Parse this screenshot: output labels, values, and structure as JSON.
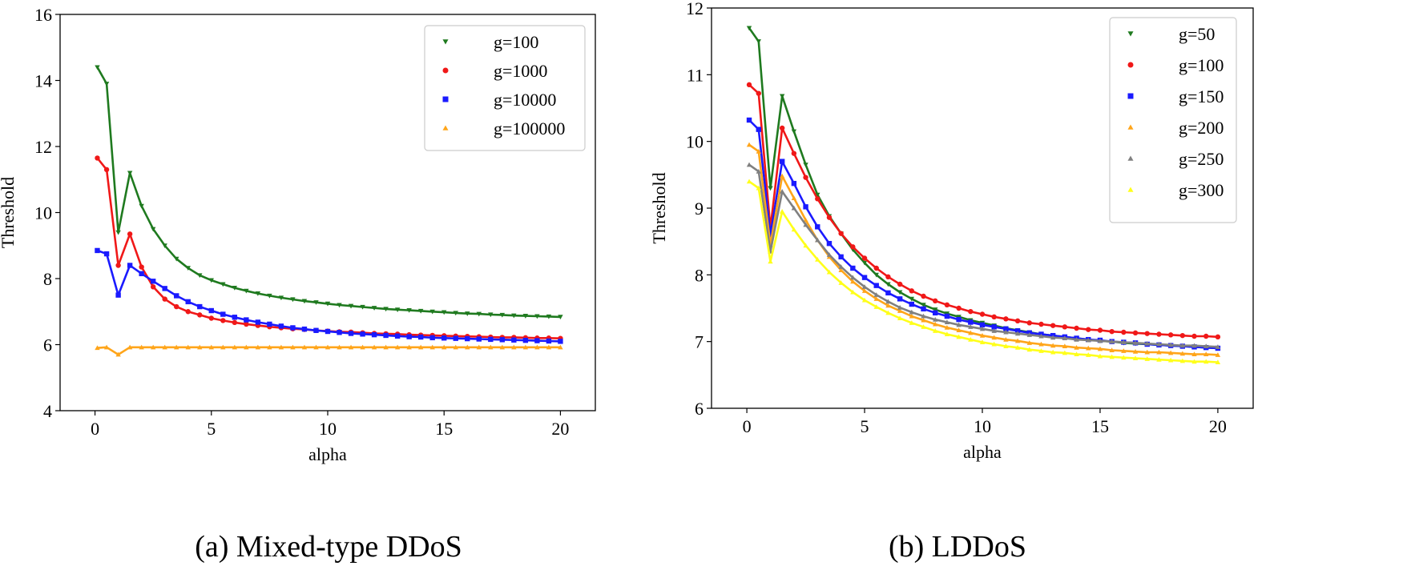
{
  "figure": {
    "caption_a": "(a) Mixed-type DDoS",
    "caption_b": "(b) LDDoS"
  },
  "chart_data": [
    {
      "type": "line",
      "id": "a",
      "title": "",
      "xlabel": "alpha",
      "ylabel": "Threshold",
      "xlim": [
        -1.5,
        21.5
      ],
      "ylim": [
        4,
        16
      ],
      "xticks": [
        0,
        5,
        10,
        15,
        20
      ],
      "yticks": [
        4,
        6,
        8,
        10,
        12,
        14,
        16
      ],
      "grid": false,
      "legend_position": "top-right",
      "series": [
        {
          "name": "g=100",
          "color": "#1f7a1f",
          "marker": "triangle-down",
          "x": [
            0.1,
            0.5,
            1.0,
            1.5,
            2.0,
            2.5,
            3.0,
            3.5,
            4.0,
            4.5,
            5.0,
            5.5,
            6.0,
            6.5,
            7.0,
            7.5,
            8.0,
            8.5,
            9.0,
            9.5,
            10.0,
            10.5,
            11.0,
            11.5,
            12.0,
            12.5,
            13.0,
            13.5,
            14.0,
            14.5,
            15.0,
            15.5,
            16.0,
            16.5,
            17.0,
            17.5,
            18.0,
            18.5,
            19.0,
            19.5,
            20.0
          ],
          "values": [
            14.4,
            13.9,
            9.4,
            11.2,
            10.2,
            9.5,
            9.0,
            8.6,
            8.32,
            8.1,
            7.95,
            7.83,
            7.72,
            7.63,
            7.55,
            7.48,
            7.42,
            7.37,
            7.32,
            7.28,
            7.24,
            7.2,
            7.17,
            7.14,
            7.11,
            7.08,
            7.06,
            7.04,
            7.02,
            7.0,
            6.98,
            6.96,
            6.94,
            6.93,
            6.91,
            6.9,
            6.88,
            6.87,
            6.86,
            6.85,
            6.84
          ]
        },
        {
          "name": "g=1000",
          "color": "#f01818",
          "marker": "circle",
          "x": [
            0.1,
            0.5,
            1.0,
            1.5,
            2.0,
            2.5,
            3.0,
            3.5,
            4.0,
            4.5,
            5.0,
            5.5,
            6.0,
            6.5,
            7.0,
            7.5,
            8.0,
            8.5,
            9.0,
            9.5,
            10.0,
            10.5,
            11.0,
            11.5,
            12.0,
            12.5,
            13.0,
            13.5,
            14.0,
            14.5,
            15.0,
            15.5,
            16.0,
            16.5,
            17.0,
            17.5,
            18.0,
            18.5,
            19.0,
            19.5,
            20.0
          ],
          "values": [
            11.65,
            11.3,
            8.4,
            9.35,
            8.35,
            7.75,
            7.38,
            7.15,
            7.0,
            6.9,
            6.8,
            6.73,
            6.67,
            6.62,
            6.58,
            6.54,
            6.51,
            6.48,
            6.46,
            6.43,
            6.41,
            6.39,
            6.38,
            6.36,
            6.34,
            6.33,
            6.32,
            6.3,
            6.29,
            6.28,
            6.27,
            6.26,
            6.25,
            6.24,
            6.23,
            6.22,
            6.22,
            6.21,
            6.2,
            6.2,
            6.19
          ]
        },
        {
          "name": "g=10000",
          "color": "#1a1aff",
          "marker": "square",
          "x": [
            0.1,
            0.5,
            1.0,
            1.5,
            2.0,
            2.5,
            3.0,
            3.5,
            4.0,
            4.5,
            5.0,
            5.5,
            6.0,
            6.5,
            7.0,
            7.5,
            8.0,
            8.5,
            9.0,
            9.5,
            10.0,
            10.5,
            11.0,
            11.5,
            12.0,
            12.5,
            13.0,
            13.5,
            14.0,
            14.5,
            15.0,
            15.5,
            16.0,
            16.5,
            17.0,
            17.5,
            18.0,
            18.5,
            19.0,
            19.5,
            20.0
          ],
          "values": [
            8.85,
            8.75,
            7.5,
            8.4,
            8.15,
            7.92,
            7.7,
            7.48,
            7.3,
            7.15,
            7.03,
            6.92,
            6.83,
            6.75,
            6.68,
            6.62,
            6.56,
            6.51,
            6.47,
            6.43,
            6.4,
            6.37,
            6.34,
            6.32,
            6.3,
            6.28,
            6.26,
            6.24,
            6.23,
            6.21,
            6.2,
            6.19,
            6.18,
            6.17,
            6.16,
            6.15,
            6.14,
            6.13,
            6.12,
            6.11,
            6.1
          ]
        },
        {
          "name": "g=100000",
          "color": "#ffa51a",
          "marker": "triangle-up",
          "x": [
            0.1,
            0.5,
            1.0,
            1.5,
            2.0,
            2.5,
            3.0,
            3.5,
            4.0,
            4.5,
            5.0,
            5.5,
            6.0,
            6.5,
            7.0,
            7.5,
            8.0,
            8.5,
            9.0,
            9.5,
            10.0,
            10.5,
            11.0,
            11.5,
            12.0,
            12.5,
            13.0,
            13.5,
            14.0,
            14.5,
            15.0,
            15.5,
            16.0,
            16.5,
            17.0,
            17.5,
            18.0,
            18.5,
            19.0,
            19.5,
            20.0
          ],
          "values": [
            5.9,
            5.92,
            5.7,
            5.92,
            5.92,
            5.92,
            5.92,
            5.92,
            5.92,
            5.92,
            5.92,
            5.92,
            5.92,
            5.92,
            5.92,
            5.92,
            5.92,
            5.92,
            5.92,
            5.92,
            5.92,
            5.92,
            5.92,
            5.92,
            5.92,
            5.92,
            5.92,
            5.92,
            5.92,
            5.92,
            5.92,
            5.92,
            5.92,
            5.92,
            5.92,
            5.92,
            5.92,
            5.92,
            5.92,
            5.92,
            5.92
          ]
        }
      ]
    },
    {
      "type": "line",
      "id": "b",
      "title": "",
      "xlabel": "alpha",
      "ylabel": "Threshold",
      "xlim": [
        -1.5,
        21.5
      ],
      "ylim": [
        6,
        12
      ],
      "xticks": [
        0,
        5,
        10,
        15,
        20
      ],
      "yticks": [
        6,
        7,
        8,
        9,
        10,
        11,
        12
      ],
      "grid": false,
      "legend_position": "top-right",
      "series": [
        {
          "name": "g=50",
          "color": "#1f7a1f",
          "marker": "triangle-down",
          "x": [
            0.1,
            0.5,
            1.0,
            1.5,
            2.0,
            2.5,
            3.0,
            3.5,
            4.0,
            4.5,
            5.0,
            5.5,
            6.0,
            6.5,
            7.0,
            7.5,
            8.0,
            8.5,
            9.0,
            9.5,
            10.0,
            10.5,
            11.0,
            11.5,
            12.0,
            12.5,
            13.0,
            13.5,
            14.0,
            14.5,
            15.0,
            15.5,
            16.0,
            16.5,
            17.0,
            17.5,
            18.0,
            18.5,
            19.0,
            19.5,
            20.0
          ],
          "values": [
            11.7,
            11.5,
            9.3,
            10.68,
            10.15,
            9.65,
            9.2,
            8.88,
            8.62,
            8.38,
            8.18,
            8.0,
            7.86,
            7.74,
            7.64,
            7.55,
            7.48,
            7.42,
            7.37,
            7.32,
            7.28,
            7.24,
            7.2,
            7.17,
            7.14,
            7.11,
            7.09,
            7.07,
            7.05,
            7.03,
            7.01,
            7.0,
            6.98,
            6.97,
            6.96,
            6.95,
            6.94,
            6.93,
            6.92,
            6.91,
            6.9
          ]
        },
        {
          "name": "g=100",
          "color": "#f01818",
          "marker": "circle",
          "x": [
            0.1,
            0.5,
            1.0,
            1.5,
            2.0,
            2.5,
            3.0,
            3.5,
            4.0,
            4.5,
            5.0,
            5.5,
            6.0,
            6.5,
            7.0,
            7.5,
            8.0,
            8.5,
            9.0,
            9.5,
            10.0,
            10.5,
            11.0,
            11.5,
            12.0,
            12.5,
            13.0,
            13.5,
            14.0,
            14.5,
            15.0,
            15.5,
            16.0,
            16.5,
            17.0,
            17.5,
            18.0,
            18.5,
            19.0,
            19.5,
            20.0
          ],
          "values": [
            10.85,
            10.72,
            8.7,
            10.2,
            9.82,
            9.46,
            9.14,
            8.86,
            8.62,
            8.42,
            8.25,
            8.1,
            7.97,
            7.86,
            7.76,
            7.68,
            7.61,
            7.55,
            7.5,
            7.45,
            7.41,
            7.37,
            7.34,
            7.31,
            7.28,
            7.26,
            7.24,
            7.22,
            7.2,
            7.18,
            7.17,
            7.15,
            7.14,
            7.13,
            7.12,
            7.11,
            7.1,
            7.09,
            7.08,
            7.08,
            7.07
          ]
        },
        {
          "name": "g=150",
          "color": "#1a1aff",
          "marker": "square",
          "x": [
            0.1,
            0.5,
            1.0,
            1.5,
            2.0,
            2.5,
            3.0,
            3.5,
            4.0,
            4.5,
            5.0,
            5.5,
            6.0,
            6.5,
            7.0,
            7.5,
            8.0,
            8.5,
            9.0,
            9.5,
            10.0,
            10.5,
            11.0,
            11.5,
            12.0,
            12.5,
            13.0,
            13.5,
            14.0,
            14.5,
            15.0,
            15.5,
            16.0,
            16.5,
            17.0,
            17.5,
            18.0,
            18.5,
            19.0,
            19.5,
            20.0
          ],
          "values": [
            10.32,
            10.18,
            8.6,
            9.7,
            9.37,
            9.02,
            8.72,
            8.47,
            8.27,
            8.1,
            7.96,
            7.84,
            7.73,
            7.64,
            7.56,
            7.49,
            7.43,
            7.38,
            7.33,
            7.29,
            7.25,
            7.22,
            7.19,
            7.16,
            7.13,
            7.11,
            7.09,
            7.07,
            7.05,
            7.03,
            7.02,
            7.0,
            6.99,
            6.98,
            6.96,
            6.95,
            6.94,
            6.93,
            6.92,
            6.91,
            6.9
          ]
        },
        {
          "name": "g=200",
          "color": "#ffa51a",
          "marker": "triangle-up",
          "x": [
            0.1,
            0.5,
            1.0,
            1.5,
            2.0,
            2.5,
            3.0,
            3.5,
            4.0,
            4.5,
            5.0,
            5.5,
            6.0,
            6.5,
            7.0,
            7.5,
            8.0,
            8.5,
            9.0,
            9.5,
            10.0,
            10.5,
            11.0,
            11.5,
            12.0,
            12.5,
            13.0,
            13.5,
            14.0,
            14.5,
            15.0,
            15.5,
            16.0,
            16.5,
            17.0,
            17.5,
            18.0,
            18.5,
            19.0,
            19.5,
            20.0
          ],
          "values": [
            9.95,
            9.85,
            8.45,
            9.48,
            9.15,
            8.82,
            8.52,
            8.27,
            8.07,
            7.9,
            7.76,
            7.64,
            7.54,
            7.46,
            7.38,
            7.32,
            7.26,
            7.21,
            7.17,
            7.13,
            7.09,
            7.06,
            7.03,
            7.01,
            6.98,
            6.96,
            6.94,
            6.93,
            6.91,
            6.9,
            6.89,
            6.87,
            6.86,
            6.85,
            6.84,
            6.84,
            6.83,
            6.82,
            6.81,
            6.81,
            6.8
          ]
        },
        {
          "name": "g=250",
          "color": "#808080",
          "marker": "triangle-up",
          "x": [
            0.1,
            0.5,
            1.0,
            1.5,
            2.0,
            2.5,
            3.0,
            3.5,
            4.0,
            4.5,
            5.0,
            5.5,
            6.0,
            6.5,
            7.0,
            7.5,
            8.0,
            8.5,
            9.0,
            9.5,
            10.0,
            10.5,
            11.0,
            11.5,
            12.0,
            12.5,
            13.0,
            13.5,
            14.0,
            14.5,
            15.0,
            15.5,
            16.0,
            16.5,
            17.0,
            17.5,
            18.0,
            18.5,
            19.0,
            19.5,
            20.0
          ],
          "values": [
            9.65,
            9.55,
            8.35,
            9.25,
            9.0,
            8.75,
            8.52,
            8.3,
            8.12,
            7.96,
            7.82,
            7.7,
            7.6,
            7.51,
            7.44,
            7.38,
            7.33,
            7.29,
            7.25,
            7.22,
            7.19,
            7.16,
            7.14,
            7.12,
            7.1,
            7.08,
            7.06,
            7.05,
            7.03,
            7.02,
            7.01,
            7.0,
            6.99,
            6.98,
            6.97,
            6.96,
            6.95,
            6.94,
            6.94,
            6.93,
            6.92
          ]
        },
        {
          "name": "g=300",
          "color": "#ffff1a",
          "marker": "triangle-up",
          "x": [
            0.1,
            0.5,
            1.0,
            1.5,
            2.0,
            2.5,
            3.0,
            3.5,
            4.0,
            4.5,
            5.0,
            5.5,
            6.0,
            6.5,
            7.0,
            7.5,
            8.0,
            8.5,
            9.0,
            9.5,
            10.0,
            10.5,
            11.0,
            11.5,
            12.0,
            12.5,
            13.0,
            13.5,
            14.0,
            14.5,
            15.0,
            15.5,
            16.0,
            16.5,
            17.0,
            17.5,
            18.0,
            18.5,
            19.0,
            19.5,
            20.0
          ],
          "values": [
            9.4,
            9.3,
            8.2,
            8.95,
            8.68,
            8.44,
            8.23,
            8.04,
            7.88,
            7.74,
            7.62,
            7.52,
            7.43,
            7.35,
            7.28,
            7.22,
            7.16,
            7.11,
            7.07,
            7.03,
            6.99,
            6.96,
            6.93,
            6.91,
            6.88,
            6.86,
            6.84,
            6.83,
            6.81,
            6.8,
            6.78,
            6.77,
            6.76,
            6.75,
            6.74,
            6.73,
            6.72,
            6.71,
            6.7,
            6.7,
            6.69
          ]
        }
      ]
    }
  ]
}
